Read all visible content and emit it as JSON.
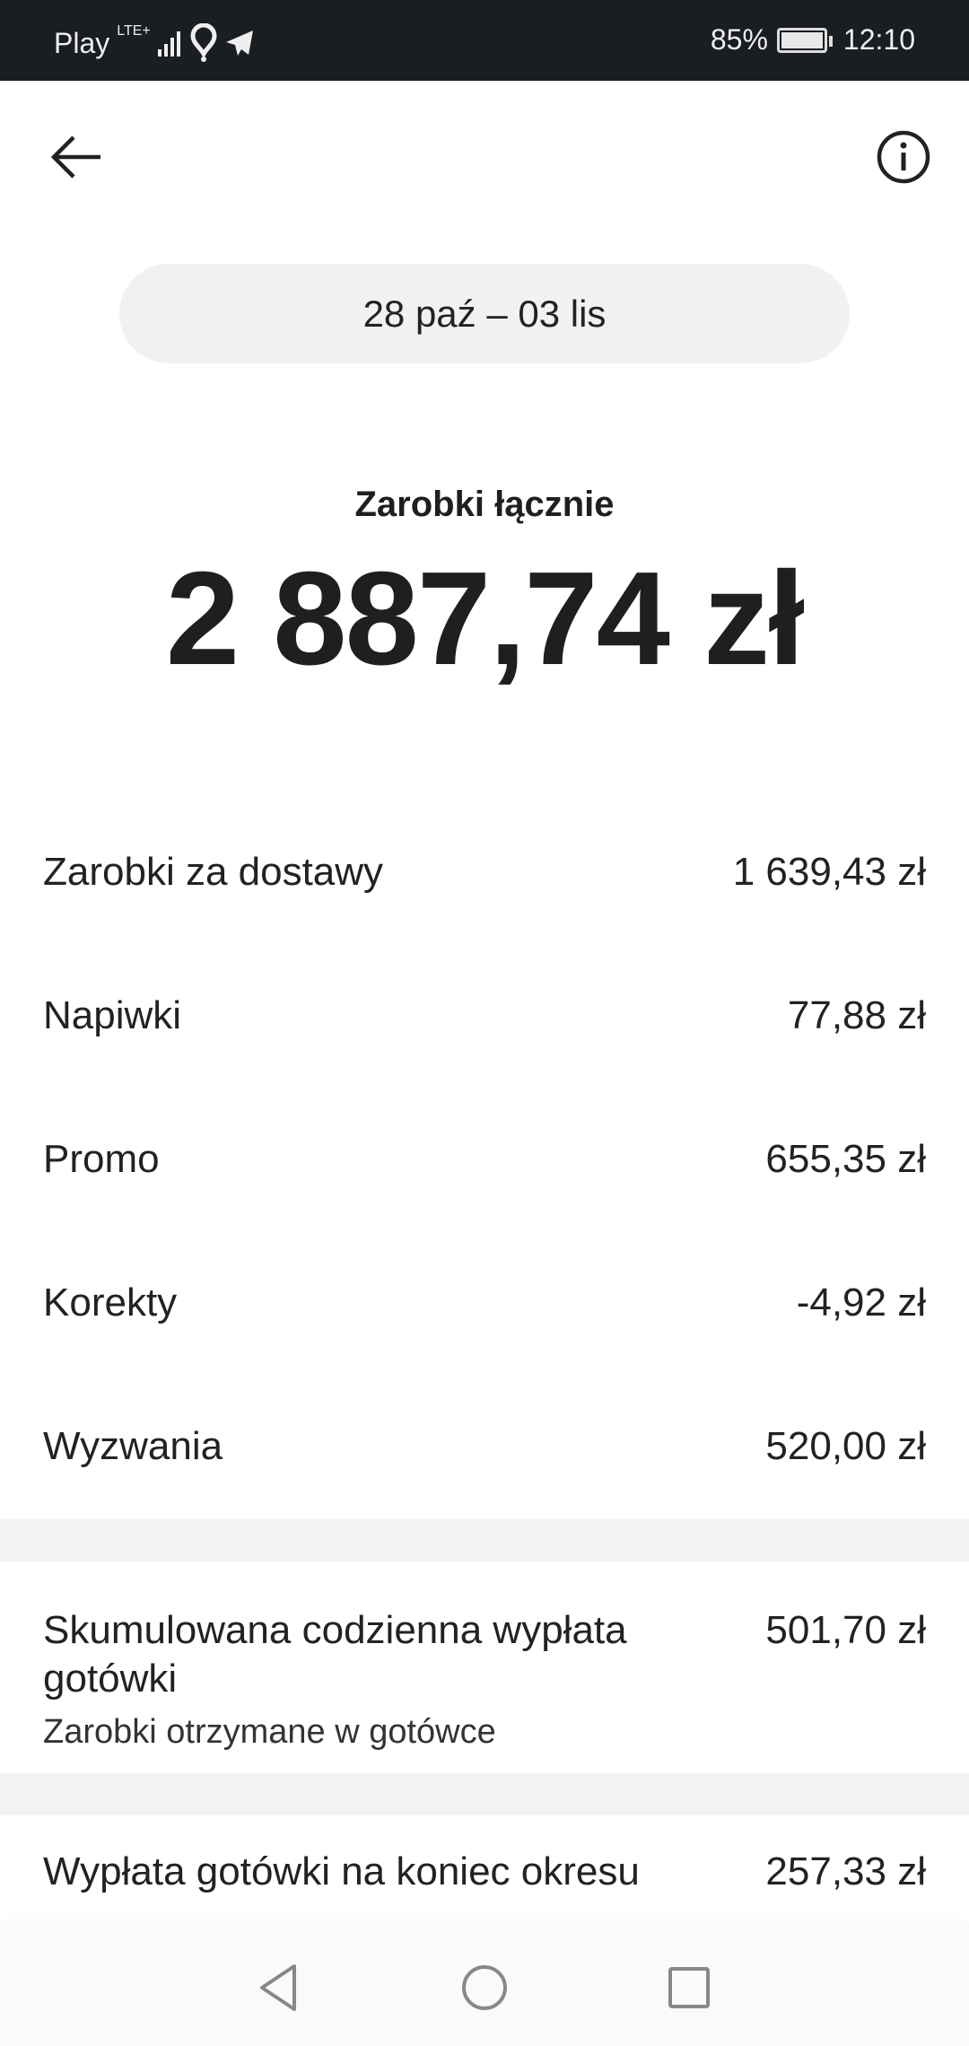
{
  "status_bar": {
    "carrier": "Play",
    "network": "LTE+",
    "battery": "85%",
    "time": "12:10"
  },
  "header": {
    "back_icon": "arrow-left-icon",
    "info_icon": "info-circle-icon"
  },
  "period": "28 paź – 03 lis",
  "total": {
    "label": "Zarobki łącznie",
    "value": "2 887,74 zł"
  },
  "breakdown": [
    {
      "label": "Zarobki za dostawy",
      "value": "1 639,43 zł"
    },
    {
      "label": "Napiwki",
      "value": "77,88 zł"
    },
    {
      "label": "Promo",
      "value": "655,35 zł"
    },
    {
      "label": "Korekty",
      "value": "-4,92 zł"
    },
    {
      "label": "Wyzwania",
      "value": "520,00 zł"
    }
  ],
  "cash_daily": {
    "label": "Skumulowana codzienna wypłata gotówki",
    "value": "501,70 zł",
    "sublabel": "Zarobki otrzymane w gotówce"
  },
  "cash_end": {
    "label": "Wypłata gotówki na koniec okresu",
    "value": "257,33 zł"
  }
}
